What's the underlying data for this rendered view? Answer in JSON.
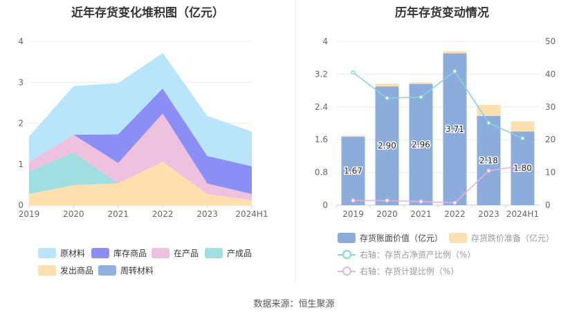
{
  "left": {
    "title": "近年存货变化堆积图（亿元）",
    "legend": [
      {
        "label": "原材料",
        "color": "#b8e5fa"
      },
      {
        "label": "库存商品",
        "color": "#8a8ef5"
      },
      {
        "label": "在产品",
        "color": "#eec1de"
      },
      {
        "label": "产成品",
        "color": "#9fdfe0"
      },
      {
        "label": "发出商品",
        "color": "#fde0ad"
      },
      {
        "label": "周转材料",
        "color": "#8fb0e0"
      }
    ]
  },
  "right": {
    "title": "历年存货变动情况",
    "legend": [
      {
        "label": "存货账面价值（亿元）",
        "color": "#8cacdc"
      },
      {
        "label": "存货跌价准备（亿元）",
        "color": "#fde0ad"
      },
      {
        "label": "右轴：存货占净资产比例（%）",
        "color": "#86d4dc"
      },
      {
        "label": "右轴：存货计提比例（%）",
        "color": "#e6b3dc"
      }
    ]
  },
  "source": "数据来源：恒生聚源",
  "chart_data": [
    {
      "type": "area",
      "stacked": true,
      "title": "近年存货变化堆积图（亿元）",
      "categories": [
        "2019",
        "2020",
        "2021",
        "2022",
        "2023",
        "2024H1"
      ],
      "ylim": [
        0,
        4
      ],
      "yticks": [
        "0",
        "1",
        "2",
        "3",
        "4"
      ],
      "grid": true,
      "legend_position": "bottom",
      "series": [
        {
          "name": "发出商品",
          "color": "#fde0ad",
          "values": [
            0.27,
            0.49,
            0.53,
            1.06,
            0.27,
            0.12
          ]
        },
        {
          "name": "产成品",
          "color": "#9fdfe0",
          "values": [
            0.55,
            0.8,
            0.0,
            0.0,
            0.0,
            0.0
          ]
        },
        {
          "name": "在产品",
          "color": "#eec1de",
          "values": [
            0.23,
            0.43,
            0.5,
            1.18,
            0.26,
            0.15
          ]
        },
        {
          "name": "库存商品",
          "color": "#8a8ef5",
          "values": [
            0.0,
            0.0,
            0.7,
            0.61,
            0.67,
            0.68
          ]
        },
        {
          "name": "周转材料",
          "color": "#8fb0e0",
          "values": [
            0,
            0,
            0,
            0,
            0,
            0
          ]
        },
        {
          "name": "原材料",
          "color": "#b8e5fa",
          "values": [
            0.63,
            1.19,
            1.25,
            0.87,
            0.98,
            0.85
          ]
        }
      ]
    },
    {
      "type": "bar",
      "stacked": true,
      "title": "历年存货变动情况",
      "categories": [
        "2019",
        "2020",
        "2021",
        "2022",
        "2023",
        "2024H1"
      ],
      "ylim": [
        0,
        4
      ],
      "yticks": [
        "0",
        "0.8",
        "1.6",
        "2.4",
        "3.2",
        "4"
      ],
      "y2lim": [
        0,
        50
      ],
      "y2ticks": [
        "0",
        "10",
        "20",
        "30",
        "40",
        "50"
      ],
      "grid": true,
      "legend_position": "bottom",
      "series": [
        {
          "name": "存货账面价值（亿元）",
          "color": "#8cacdc",
          "axis": "left",
          "values": [
            1.67,
            2.9,
            2.96,
            3.71,
            2.18,
            1.8
          ],
          "labels": [
            "1.67",
            "2.90",
            "2.96",
            "3.71",
            "2.18",
            "1.80"
          ]
        },
        {
          "name": "存货跌价准备（亿元）",
          "color": "#fde0ad",
          "axis": "left",
          "values": [
            0.03,
            0.07,
            0.04,
            0.05,
            0.27,
            0.25
          ]
        },
        {
          "name": "右轴：存货占净资产比例（%）",
          "color": "#86d4dc",
          "axis": "right",
          "type": "line",
          "values": [
            40.5,
            32.7,
            33.0,
            40.9,
            25.1,
            20.4
          ]
        },
        {
          "name": "右轴：存货计提比例（%）",
          "color": "#e6b3dc",
          "axis": "right",
          "type": "line",
          "values": [
            1.4,
            1.4,
            1.1,
            0.7,
            10.5,
            12.0
          ]
        }
      ]
    }
  ]
}
